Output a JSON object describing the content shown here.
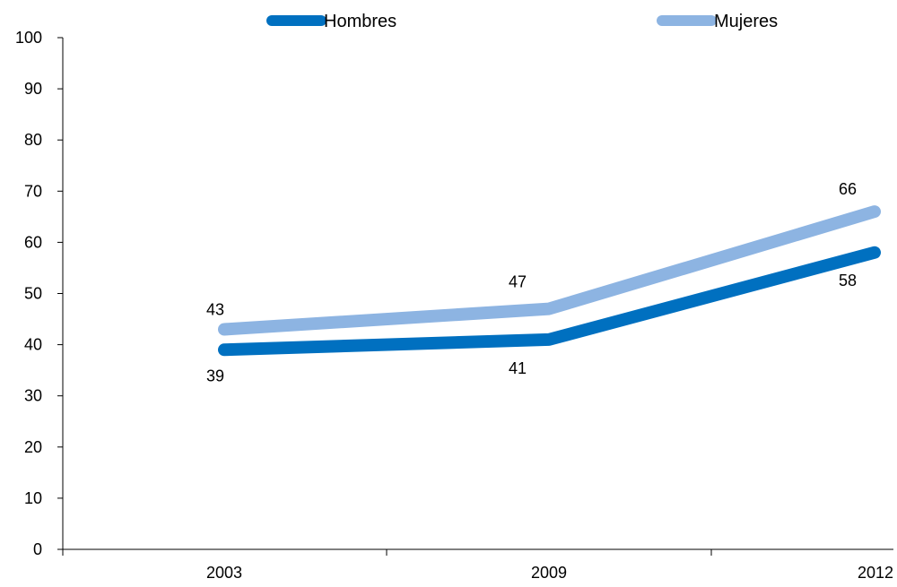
{
  "chart_data": {
    "type": "line",
    "categories": [
      "2003",
      "2009",
      "2012"
    ],
    "series": [
      {
        "name": "Hombres",
        "values": [
          39,
          41,
          58
        ],
        "color": "#0070c0"
      },
      {
        "name": "Mujeres",
        "values": [
          43,
          47,
          66
        ],
        "color": "#8db4e2"
      }
    ],
    "ylim": [
      0,
      100
    ],
    "yticks": [
      "0",
      "10",
      "20",
      "30",
      "40",
      "50",
      "60",
      "70",
      "80",
      "90",
      "100"
    ],
    "grid": false,
    "legend_position": "top"
  }
}
